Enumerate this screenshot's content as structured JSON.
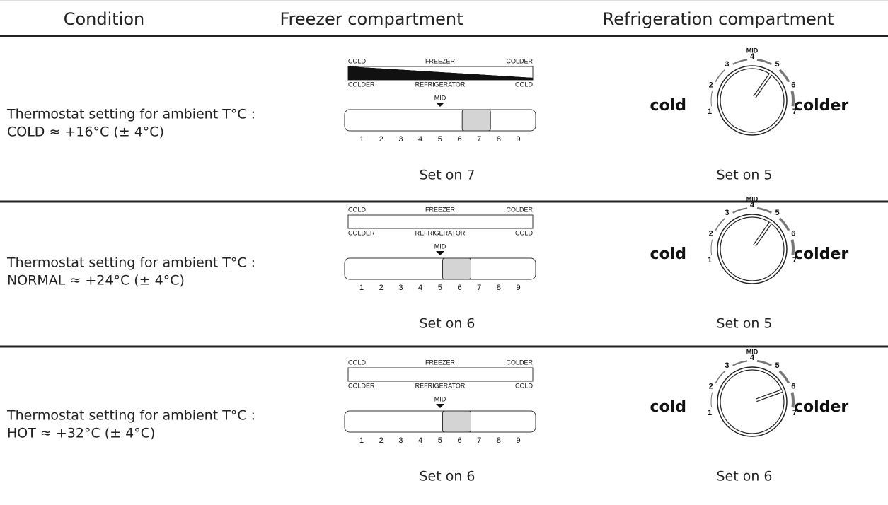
{
  "header": {
    "columns": [
      "Condition",
      "Freezer compartment",
      "Refrigeration compartment"
    ]
  },
  "freezer_scale": {
    "top_left": "COLD",
    "top_center": "FREEZER",
    "top_right": "COLDER",
    "bottom_left": "COLDER",
    "bottom_center": "REFRIGERATOR",
    "bottom_right": "COLD",
    "marker": "MID",
    "numbers": [
      1,
      2,
      3,
      4,
      5,
      6,
      7,
      8,
      9
    ]
  },
  "dial": {
    "left": "cold",
    "right": "colder",
    "marker": "MID",
    "numbers": [
      1,
      2,
      3,
      4,
      5,
      6,
      7
    ]
  },
  "rows": [
    {
      "condition": [
        "Thermostat setting for ambient T°C :",
        "COLD ≈ +16°C (± 4°C)"
      ],
      "freezer": {
        "setting": 7,
        "label": "Set on 7"
      },
      "refrigerator": {
        "setting": 5,
        "label": "Set on 5"
      }
    },
    {
      "condition": [
        "Thermostat setting for ambient T°C :",
        "NORMAL ≈ +24°C (± 4°C)"
      ],
      "freezer": {
        "setting": 6,
        "label": "Set on 6"
      },
      "refrigerator": {
        "setting": 5,
        "label": "Set on 5"
      }
    },
    {
      "condition": [
        "Thermostat setting for ambient T°C :",
        "HOT ≈ +32°C (± 4°C)"
      ],
      "freezer": {
        "setting": 6,
        "label": "Set on 6"
      },
      "refrigerator": {
        "setting": 6,
        "label": "Set on 6"
      }
    }
  ]
}
